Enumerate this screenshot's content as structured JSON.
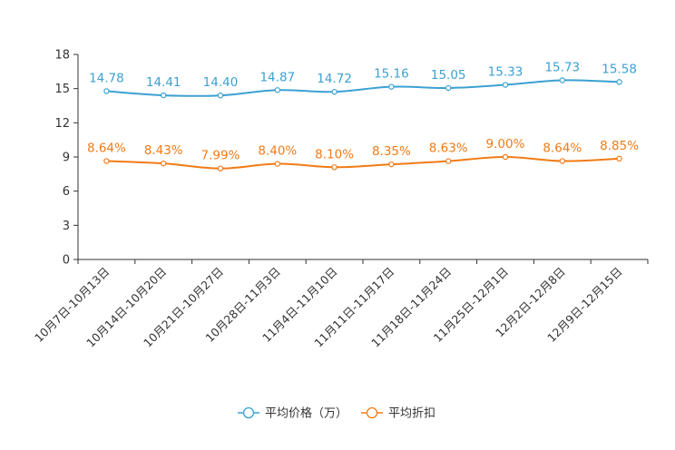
{
  "chart_data": {
    "type": "line",
    "title": "",
    "xlabel": "",
    "ylabel": "",
    "ylim": [
      0,
      18
    ],
    "yticks": [
      0,
      3,
      6,
      9,
      12,
      15,
      18
    ],
    "grid": false,
    "legend_position": "bottom",
    "categories": [
      "10月7日-10月13日",
      "10月14日-10月20日",
      "10月21日-10月27日",
      "10月28日-11月3日",
      "11月4日-11月10日",
      "11月11日-11月17日",
      "11月18日-11月24日",
      "11月25日-12月1日",
      "12月2日-12月8日",
      "12月9日-12月15日"
    ],
    "series": [
      {
        "name": "平均价格（万）",
        "color": "#3ba1d2",
        "values": [
          14.78,
          14.41,
          14.4,
          14.87,
          14.72,
          15.16,
          15.05,
          15.33,
          15.73,
          15.58
        ],
        "labels": [
          "14.78",
          "14.41",
          "14.40",
          "14.87",
          "14.72",
          "15.16",
          "15.05",
          "15.33",
          "15.73",
          "15.58"
        ]
      },
      {
        "name": "平均折扣",
        "color": "#f07b16",
        "values": [
          8.64,
          8.43,
          7.99,
          8.4,
          8.1,
          8.35,
          8.63,
          9.0,
          8.64,
          8.85
        ],
        "labels": [
          "8.64%",
          "8.43%",
          "7.99%",
          "8.40%",
          "8.10%",
          "8.35%",
          "8.63%",
          "9.00%",
          "8.64%",
          "8.85%"
        ]
      }
    ]
  }
}
